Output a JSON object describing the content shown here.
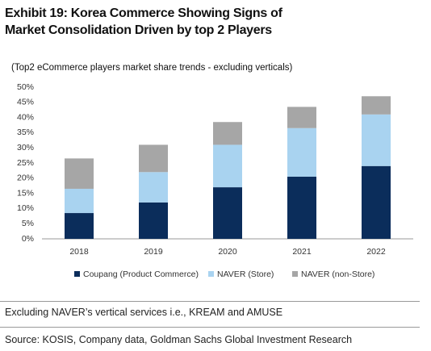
{
  "chart_data": {
    "type": "stacked_bar",
    "title": "Exhibit 19: Korea Commerce Showing Signs of Market Consolidation Driven by top 2 Players",
    "subtitle": "(Top2 eCommerce players market share trends - excluding verticals)",
    "categories": [
      "2018",
      "2019",
      "2020",
      "2021",
      "2022"
    ],
    "series": [
      {
        "name": "Coupang (Product Commerce)",
        "color": "#0b2d5b",
        "values": [
          8.5,
          12,
          17,
          20.5,
          24
        ]
      },
      {
        "name": "NAVER (Store)",
        "color": "#a9d3f0",
        "values": [
          8,
          10,
          14,
          16,
          17
        ]
      },
      {
        "name": "NAVER (non-Store)",
        "color": "#a6a6a6",
        "values": [
          10,
          9,
          7.5,
          7,
          6
        ]
      }
    ],
    "ylim": [
      0,
      50
    ],
    "yticks": [
      {
        "value": 0,
        "label": "0%"
      },
      {
        "value": 5,
        "label": "5%"
      },
      {
        "value": 10,
        "label": "10%"
      },
      {
        "value": 15,
        "label": "15%"
      },
      {
        "value": 20,
        "label": "20%"
      },
      {
        "value": 25,
        "label": "25%"
      },
      {
        "value": 30,
        "label": "30%"
      },
      {
        "value": 35,
        "label": "35%"
      },
      {
        "value": 40,
        "label": "40%"
      },
      {
        "value": 45,
        "label": "45%"
      },
      {
        "value": 50,
        "label": "50%"
      }
    ],
    "grid": false,
    "notes": [
      "Excluding NAVER’s vertical services i.e., KREAM and AMUSE",
      "Source: KOSIS, Company data, Goldman Sachs Global Investment Research"
    ]
  }
}
